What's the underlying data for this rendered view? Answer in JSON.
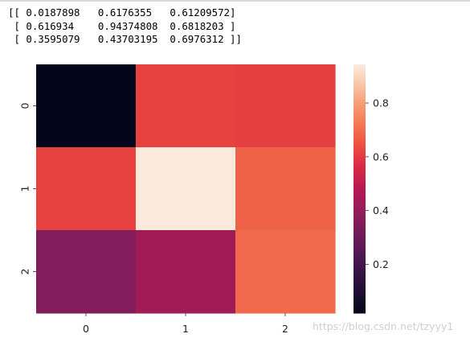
{
  "printed_output": {
    "lines": [
      "[[ 0.0187898   0.6176355   0.61209572]",
      " [ 0.616934    0.94374808  0.6818203 ]",
      " [ 0.3595079   0.43703195  0.6976312 ]]"
    ]
  },
  "chart_data": {
    "type": "heatmap",
    "rows": [
      "0",
      "1",
      "2"
    ],
    "columns": [
      "0",
      "1",
      "2"
    ],
    "values": [
      [
        0.0187898,
        0.6176355,
        0.61209572
      ],
      [
        0.616934,
        0.94374808,
        0.6818203
      ],
      [
        0.3595079,
        0.43703195,
        0.6976312
      ]
    ],
    "colormap": "rocket",
    "colorbar": {
      "range": [
        0.0187898,
        0.94374808
      ],
      "ticks": [
        0.2,
        0.4,
        0.6,
        0.8
      ],
      "tick_labels": [
        "0.2",
        "0.4",
        "0.6",
        "0.8"
      ]
    }
  },
  "watermark": "https://blog.csdn.net/tzyyy1"
}
